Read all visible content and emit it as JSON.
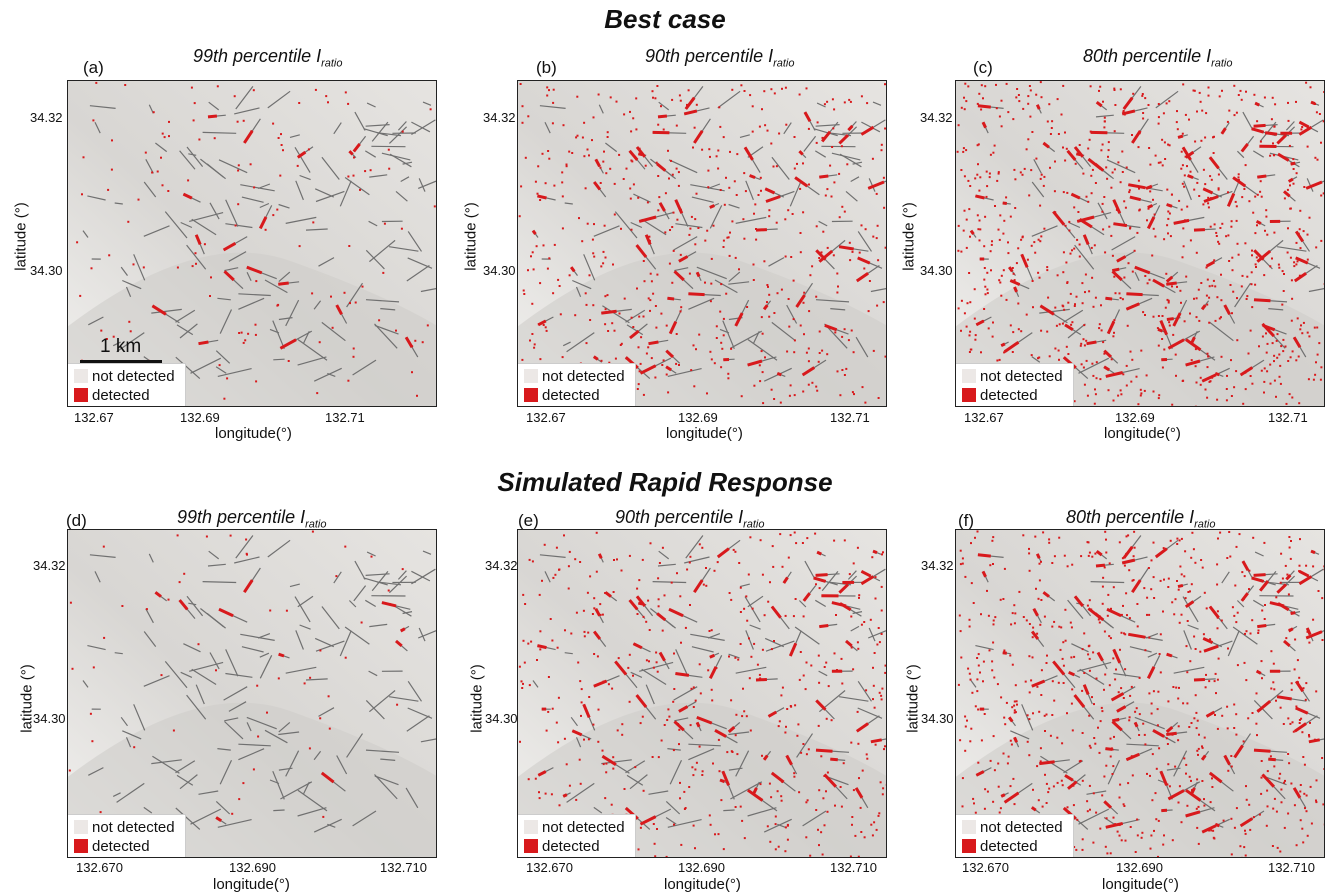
{
  "sections": [
    {
      "title": "Best case"
    },
    {
      "title": "Simulated Rapid Response"
    }
  ],
  "panels": [
    {
      "letter": "(a)",
      "title_main": "99th percentile I",
      "title_sub": "ratio",
      "yticks": [
        "34.32",
        "34.30"
      ],
      "xticks": [
        "132.67",
        "132.69",
        "132.71"
      ],
      "xlabel": "longitude(°)",
      "ylabel": "latitude (°)",
      "density": 0.15,
      "scale_label": "1 km"
    },
    {
      "letter": "(b)",
      "title_main": "90th percentile I",
      "title_sub": "ratio",
      "yticks": [
        "34.32",
        "34.30"
      ],
      "xticks": [
        "132.67",
        "132.69",
        "132.71"
      ],
      "xlabel": "longitude(°)",
      "ylabel": "latitude (°)",
      "density": 0.55
    },
    {
      "letter": "(c)",
      "title_main": "80th percentile I",
      "title_sub": "ratio",
      "yticks": [
        "34.32",
        "34.30"
      ],
      "xticks": [
        "132.67",
        "132.69",
        "132.71"
      ],
      "xlabel": "longitude(°)",
      "ylabel": "latitude (°)",
      "density": 0.9
    },
    {
      "letter": "(d)",
      "title_main": "99th percentile I",
      "title_sub": "ratio",
      "yticks": [
        "34.32",
        "34.30"
      ],
      "xticks": [
        "132.670",
        "132.690",
        "132.710"
      ],
      "xlabel": "longitude(°)",
      "ylabel": "latitude (°)",
      "density": 0.06
    },
    {
      "letter": "(e)",
      "title_main": "90th percentile I",
      "title_sub": "ratio",
      "yticks": [
        "34.32",
        "34.30"
      ],
      "xticks": [
        "132.670",
        "132.690",
        "132.710"
      ],
      "xlabel": "longitude(°)",
      "ylabel": "latitude (°)",
      "density": 0.5
    },
    {
      "letter": "(f)",
      "title_main": "80th percentile I",
      "title_sub": "ratio",
      "yticks": [
        "34.32",
        "34.30"
      ],
      "xticks": [
        "132.670",
        "132.690",
        "132.710"
      ],
      "xlabel": "longitude(°)",
      "ylabel": "latitude (°)",
      "density": 0.8
    }
  ],
  "legend": {
    "not_detected": "not detected",
    "detected": "detected"
  },
  "colors": {
    "not_detected": "#ece8e6",
    "detected": "#d8191c",
    "terrain": "#e9e7e3",
    "drainage": "#707070"
  }
}
